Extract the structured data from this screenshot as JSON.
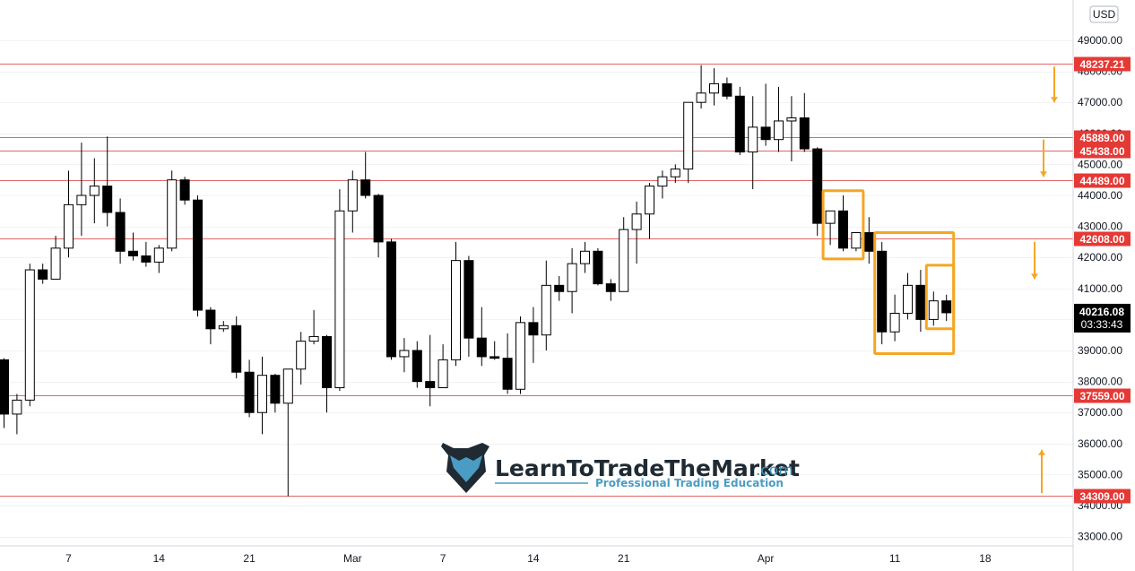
{
  "chart_data": {
    "type": "candlestick",
    "currency": "USD",
    "ylim": [
      32700,
      50300
    ],
    "y_ticks": [
      33000,
      34000,
      35000,
      36000,
      37000,
      38000,
      39000,
      40000,
      41000,
      42000,
      43000,
      44000,
      45000,
      46000,
      47000,
      48000,
      49000
    ],
    "x_labels": [
      {
        "label": "7",
        "index": 5
      },
      {
        "label": "14",
        "index": 12
      },
      {
        "label": "21",
        "index": 19
      },
      {
        "label": "Mar",
        "index": 27
      },
      {
        "label": "7",
        "index": 34
      },
      {
        "label": "14",
        "index": 41
      },
      {
        "label": "21",
        "index": 48
      },
      {
        "label": "Apr",
        "index": 59
      },
      {
        "label": "11",
        "index": 69
      },
      {
        "label": "18",
        "index": 76
      }
    ],
    "levels": [
      48237.21,
      45889.0,
      45438.0,
      44489.0,
      42608.0,
      37559.0,
      34309.0
    ],
    "level_color": "#e06666",
    "tag_color": "#e53935",
    "candle_up_fill": "#ffffff",
    "candle_down_fill": "#000000",
    "highlight_color": "#f5a623",
    "arrow_color": "#f5a623",
    "candles": [
      {
        "o": 38700,
        "h": 38750,
        "l": 36500,
        "c": 36950
      },
      {
        "o": 36950,
        "h": 37600,
        "l": 36300,
        "c": 37400
      },
      {
        "o": 37400,
        "h": 41800,
        "l": 37200,
        "c": 41600
      },
      {
        "o": 41600,
        "h": 41800,
        "l": 41150,
        "c": 41300
      },
      {
        "o": 41300,
        "h": 42700,
        "l": 41300,
        "c": 42300
      },
      {
        "o": 42300,
        "h": 44800,
        "l": 42000,
        "c": 43700
      },
      {
        "o": 43700,
        "h": 45700,
        "l": 42700,
        "c": 44000
      },
      {
        "o": 44000,
        "h": 45200,
        "l": 43100,
        "c": 44300
      },
      {
        "o": 44300,
        "h": 45900,
        "l": 43000,
        "c": 43450
      },
      {
        "o": 43450,
        "h": 43900,
        "l": 41800,
        "c": 42200
      },
      {
        "o": 42200,
        "h": 42800,
        "l": 41900,
        "c": 42050
      },
      {
        "o": 42050,
        "h": 42500,
        "l": 41700,
        "c": 41850
      },
      {
        "o": 41850,
        "h": 42400,
        "l": 41500,
        "c": 42300
      },
      {
        "o": 42300,
        "h": 44800,
        "l": 42200,
        "c": 44500
      },
      {
        "o": 44500,
        "h": 44600,
        "l": 43700,
        "c": 43850
      },
      {
        "o": 43850,
        "h": 44000,
        "l": 40100,
        "c": 40300
      },
      {
        "o": 40300,
        "h": 40400,
        "l": 39200,
        "c": 39700
      },
      {
        "o": 39700,
        "h": 39950,
        "l": 39600,
        "c": 39800
      },
      {
        "o": 39800,
        "h": 40100,
        "l": 38100,
        "c": 38300
      },
      {
        "o": 38300,
        "h": 38700,
        "l": 36850,
        "c": 37000
      },
      {
        "o": 37000,
        "h": 38800,
        "l": 36300,
        "c": 38200
      },
      {
        "o": 38200,
        "h": 38250,
        "l": 37000,
        "c": 37300
      },
      {
        "o": 37300,
        "h": 38400,
        "l": 34300,
        "c": 38400
      },
      {
        "o": 38400,
        "h": 39600,
        "l": 37900,
        "c": 39300
      },
      {
        "o": 39300,
        "h": 40300,
        "l": 39200,
        "c": 39450
      },
      {
        "o": 39450,
        "h": 39500,
        "l": 37000,
        "c": 37800
      },
      {
        "o": 37800,
        "h": 44200,
        "l": 37700,
        "c": 43500
      },
      {
        "o": 43500,
        "h": 44800,
        "l": 42800,
        "c": 44500
      },
      {
        "o": 44500,
        "h": 45400,
        "l": 43900,
        "c": 44000
      },
      {
        "o": 44000,
        "h": 44050,
        "l": 42000,
        "c": 42500
      },
      {
        "o": 42500,
        "h": 42600,
        "l": 38700,
        "c": 38800
      },
      {
        "o": 38800,
        "h": 39400,
        "l": 38300,
        "c": 39000
      },
      {
        "o": 39000,
        "h": 39300,
        "l": 37800,
        "c": 38000
      },
      {
        "o": 38000,
        "h": 39500,
        "l": 37200,
        "c": 37800
      },
      {
        "o": 37800,
        "h": 39200,
        "l": 37800,
        "c": 38700
      },
      {
        "o": 38700,
        "h": 42500,
        "l": 38500,
        "c": 41900
      },
      {
        "o": 41900,
        "h": 42050,
        "l": 38800,
        "c": 39400
      },
      {
        "o": 39400,
        "h": 40400,
        "l": 38500,
        "c": 38800
      },
      {
        "o": 38800,
        "h": 39300,
        "l": 38700,
        "c": 38750
      },
      {
        "o": 38750,
        "h": 39550,
        "l": 37600,
        "c": 37750
      },
      {
        "o": 37750,
        "h": 40100,
        "l": 37600,
        "c": 39900
      },
      {
        "o": 39900,
        "h": 40400,
        "l": 38600,
        "c": 39500
      },
      {
        "o": 39500,
        "h": 41900,
        "l": 39000,
        "c": 41100
      },
      {
        "o": 41100,
        "h": 41400,
        "l": 40600,
        "c": 40900
      },
      {
        "o": 40900,
        "h": 42300,
        "l": 40200,
        "c": 41800
      },
      {
        "o": 41800,
        "h": 42500,
        "l": 41500,
        "c": 42200
      },
      {
        "o": 42200,
        "h": 42300,
        "l": 41100,
        "c": 41150
      },
      {
        "o": 41150,
        "h": 41300,
        "l": 40600,
        "c": 40900
      },
      {
        "o": 40900,
        "h": 43300,
        "l": 40900,
        "c": 42900
      },
      {
        "o": 42900,
        "h": 43800,
        "l": 41800,
        "c": 43400
      },
      {
        "o": 43400,
        "h": 44400,
        "l": 42600,
        "c": 44300
      },
      {
        "o": 44300,
        "h": 44800,
        "l": 43900,
        "c": 44600
      },
      {
        "o": 44600,
        "h": 45000,
        "l": 44400,
        "c": 44850
      },
      {
        "o": 44850,
        "h": 47000,
        "l": 44400,
        "c": 47000
      },
      {
        "o": 47000,
        "h": 48200,
        "l": 46800,
        "c": 47300
      },
      {
        "o": 47300,
        "h": 48100,
        "l": 46900,
        "c": 47600
      },
      {
        "o": 47600,
        "h": 47800,
        "l": 47100,
        "c": 47200
      },
      {
        "o": 47200,
        "h": 47500,
        "l": 45300,
        "c": 45400
      },
      {
        "o": 45400,
        "h": 47200,
        "l": 44200,
        "c": 46200
      },
      {
        "o": 46200,
        "h": 47600,
        "l": 45600,
        "c": 45800
      },
      {
        "o": 45800,
        "h": 47500,
        "l": 45400,
        "c": 46400
      },
      {
        "o": 46400,
        "h": 47200,
        "l": 45100,
        "c": 46500
      },
      {
        "o": 46500,
        "h": 47300,
        "l": 45400,
        "c": 45500
      },
      {
        "o": 45500,
        "h": 45550,
        "l": 42700,
        "c": 43100
      },
      {
        "o": 43100,
        "h": 43500,
        "l": 42400,
        "c": 43500
      },
      {
        "o": 43500,
        "h": 44000,
        "l": 42200,
        "c": 42300
      },
      {
        "o": 42300,
        "h": 42800,
        "l": 42200,
        "c": 42800
      },
      {
        "o": 42800,
        "h": 43300,
        "l": 41800,
        "c": 42200
      },
      {
        "o": 42200,
        "h": 42500,
        "l": 39200,
        "c": 39600
      },
      {
        "o": 39600,
        "h": 40800,
        "l": 39300,
        "c": 40200
      },
      {
        "o": 40200,
        "h": 41500,
        "l": 40000,
        "c": 41100
      },
      {
        "o": 41100,
        "h": 41600,
        "l": 39600,
        "c": 40000
      },
      {
        "o": 40000,
        "h": 40900,
        "l": 39800,
        "c": 40600
      },
      {
        "o": 40600,
        "h": 40800,
        "l": 39950,
        "c": 40216.08
      }
    ],
    "highlight_boxes": [
      {
        "i0": 64,
        "i1": 66,
        "hi": 44150,
        "lo": 41950
      },
      {
        "i0": 68,
        "i1": 73,
        "hi": 42800,
        "lo": 38900
      },
      {
        "i0": 72,
        "i1": 73,
        "hi": 41750,
        "lo": 39700
      }
    ],
    "arrows": [
      {
        "price_from": 48150,
        "price_to": 47000,
        "dir": "down"
      },
      {
        "price_from": 45800,
        "price_to": 44600,
        "dir": "down"
      },
      {
        "price_from": 42500,
        "price_to": 41300,
        "dir": "down"
      },
      {
        "price_from": 34400,
        "price_to": 35800,
        "dir": "up"
      }
    ]
  },
  "price_axis": {
    "currency_label": "USD",
    "current_price": "40216.08",
    "countdown": "03:33:43",
    "level_labels": [
      "48237.21",
      "45889.00",
      "45438.00",
      "44489.00",
      "42608.00",
      "37559.00",
      "34309.00"
    ]
  },
  "logo": {
    "name": "LearnToTradeTheMarket",
    "tld": ".com",
    "tagline": "Professional Trading Education"
  }
}
